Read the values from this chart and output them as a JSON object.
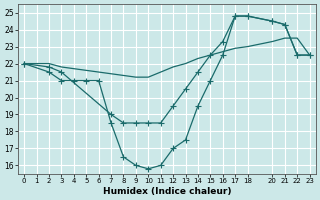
{
  "xlabel": "Humidex (Indice chaleur)",
  "xlim": [
    -0.5,
    23.5
  ],
  "ylim": [
    15.5,
    25.5
  ],
  "xticks": [
    0,
    1,
    2,
    3,
    4,
    5,
    6,
    7,
    8,
    9,
    10,
    11,
    12,
    13,
    14,
    15,
    16,
    17,
    18,
    20,
    21,
    22,
    23
  ],
  "yticks": [
    16,
    17,
    18,
    19,
    20,
    21,
    22,
    23,
    24,
    25
  ],
  "background_color": "#cce8e8",
  "grid_color": "#ffffff",
  "line_color": "#1a6b6b",
  "curve_top_x": [
    0,
    1,
    2,
    3,
    4,
    5,
    6,
    7,
    8,
    9,
    10,
    11,
    12,
    13,
    14,
    15,
    16,
    17,
    18,
    20,
    21,
    22,
    23
  ],
  "curve_top_y": [
    22,
    22,
    22,
    21.8,
    21.7,
    21.6,
    21.5,
    21.4,
    21.3,
    21.2,
    21.2,
    21.5,
    21.8,
    22.0,
    22.3,
    22.5,
    22.7,
    22.9,
    23.0,
    23.3,
    23.5,
    23.5,
    22.5
  ],
  "curve_mid_x": [
    0,
    2,
    3,
    7,
    8,
    9,
    10,
    11,
    12,
    13,
    14,
    15,
    16,
    17,
    18,
    20,
    21,
    22,
    23
  ],
  "curve_mid_y": [
    22,
    21.8,
    21.5,
    19.0,
    18.5,
    18.5,
    18.5,
    18.5,
    19.5,
    20.5,
    21.5,
    22.5,
    23.3,
    24.8,
    24.8,
    24.5,
    24.3,
    22.5,
    22.5
  ],
  "curve_bot_x": [
    0,
    2,
    3,
    4,
    5,
    6,
    7,
    8,
    9,
    10,
    11,
    12,
    13,
    14,
    15,
    16,
    17,
    18,
    20,
    21,
    22,
    23
  ],
  "curve_bot_y": [
    22,
    21.5,
    21.0,
    21.0,
    21.0,
    21.0,
    18.5,
    16.5,
    16.0,
    15.8,
    16.0,
    17.0,
    17.5,
    19.5,
    21.0,
    22.5,
    24.8,
    24.8,
    24.5,
    24.3,
    22.5,
    22.5
  ]
}
